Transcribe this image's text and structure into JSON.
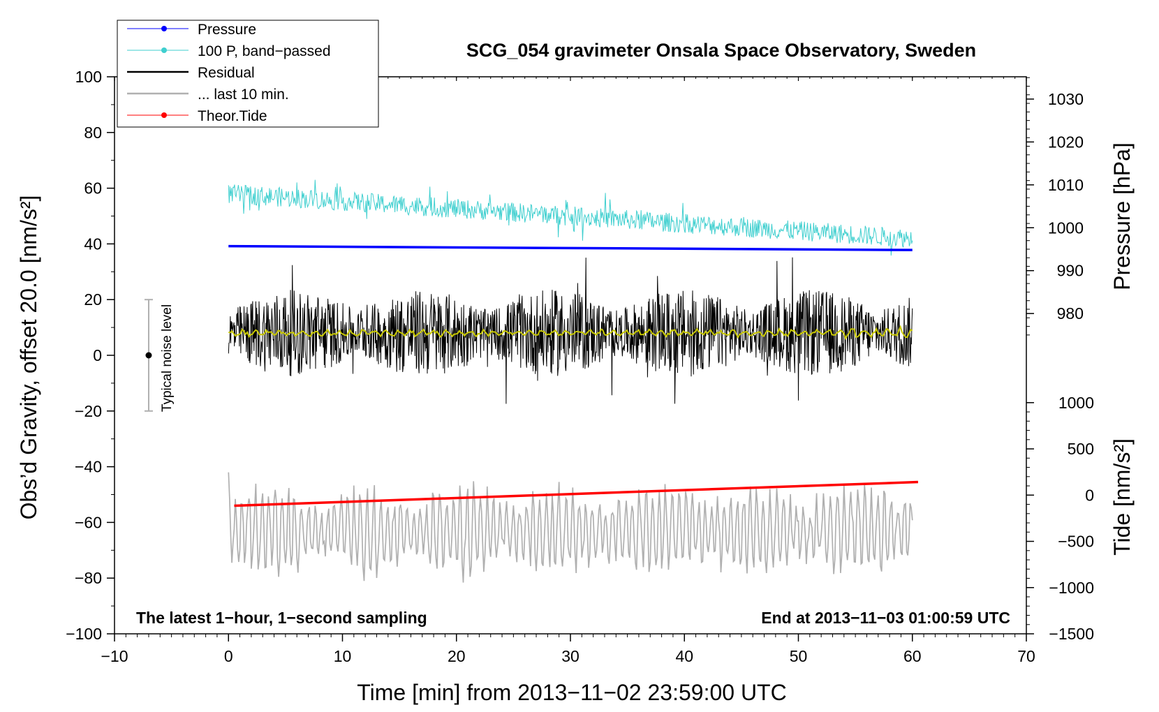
{
  "chart_data": {
    "type": "line",
    "title": "SCG_054 gravimeter Onsala Space Observatory, Sweden",
    "xlabel": "Time [min] from 2013−11−02 23:59:00 UTC",
    "ylabel": "Obs’d Gravity, offset 20.0 [nm/s²]",
    "ylabel_right_pressure": "Pressure [hPa]",
    "ylabel_right_tide": "Tide [nm/s²]",
    "xlim": [
      -10,
      70
    ],
    "ylim": [
      -100,
      100
    ],
    "x_ticks": [
      -10,
      0,
      10,
      20,
      30,
      40,
      50,
      60,
      70
    ],
    "x_tick_labels": [
      "−10",
      "0",
      "10",
      "20",
      "30",
      "40",
      "50",
      "60",
      "70"
    ],
    "y_ticks": [
      100,
      80,
      60,
      40,
      20,
      0,
      -20,
      -40,
      -60,
      -80,
      -100
    ],
    "y_tick_labels": [
      "100",
      "80",
      "60",
      "40",
      "20",
      "0",
      "−20",
      "−40",
      "−60",
      "−80",
      "−100"
    ],
    "pressure_axis": {
      "ticks": [
        1030,
        1020,
        1010,
        1000,
        990,
        980
      ],
      "tick_labels": [
        "1030",
        "1020",
        "1010",
        "1000",
        "990",
        "980"
      ],
      "y_at": [
        {
          "hpa": 1030,
          "gravity_y": 92
        },
        {
          "hpa": 980,
          "gravity_y": 15
        }
      ]
    },
    "tide_axis": {
      "ticks": [
        1000,
        500,
        0,
        -500,
        -1000,
        -1500
      ],
      "tick_labels": [
        "1000",
        "500",
        "0",
        "−500",
        "−1000",
        "−1500"
      ],
      "y_at": [
        {
          "tide": 1000,
          "gravity_y": -17
        },
        {
          "tide": -1500,
          "gravity_y": -100
        }
      ]
    },
    "legend": {
      "position": "top-left",
      "entries": [
        {
          "label": "Pressure",
          "color": "#0000ff",
          "marker": true
        },
        {
          "label": "100 P, band−passed",
          "color": "#3fcfcf",
          "marker": true
        },
        {
          "label": "Residual",
          "color": "#000000",
          "marker": false
        },
        {
          "label": "... last 10 min.",
          "color": "#b0b0b0",
          "marker": false
        },
        {
          "label": "Theor.Tide",
          "color": "#ff0000",
          "marker": true
        }
      ]
    },
    "series": [
      {
        "name": "Pressure",
        "color": "#0000ff",
        "x_range": [
          0,
          60
        ],
        "y_start": 39.2,
        "y_end": 37.8
      },
      {
        "name": "100 P, band−passed",
        "color": "#3fcfcf",
        "x_range": [
          0,
          60
        ],
        "y_start": 58,
        "y_end": 42,
        "amplitude": 3.5
      },
      {
        "name": "Residual",
        "color": "#000000",
        "x_range": [
          0,
          60
        ],
        "y_center": 8,
        "amplitude": 13
      },
      {
        "name": "Residual smoothed",
        "color": "#c8c800",
        "x_range": [
          0,
          60
        ],
        "y_center": 8,
        "amplitude": 1.2
      },
      {
        "name": "... last 10 min.",
        "color": "#b0b0b0",
        "x_range": [
          0,
          60
        ],
        "y_center": -63,
        "amplitude": 14
      },
      {
        "name": "Theor.Tide",
        "color": "#ff0000",
        "x_range": [
          0.5,
          60.5
        ],
        "y_start": -54,
        "y_end": -45.5
      }
    ],
    "noise_bar": {
      "x": -7,
      "y_low": -20,
      "y_mid": 0,
      "y_high": 20,
      "label": "Typical noise level"
    },
    "annotations": {
      "bottom_left": "The latest 1−hour, 1−second sampling",
      "bottom_right": "End at 2013−11−03 01:00:59 UTC"
    }
  }
}
